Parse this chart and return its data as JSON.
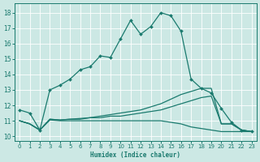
{
  "xlabel": "Humidex (Indice chaleur)",
  "bg_color": "#cce8e4",
  "grid_color": "#ffffff",
  "line_color": "#1a7a6e",
  "xlim": [
    -0.5,
    23.5
  ],
  "ylim": [
    9.7,
    18.6
  ],
  "xticks": [
    0,
    1,
    2,
    3,
    4,
    5,
    6,
    7,
    8,
    9,
    10,
    11,
    12,
    13,
    14,
    15,
    16,
    17,
    18,
    19,
    20,
    21,
    22,
    23
  ],
  "yticks": [
    10,
    11,
    12,
    13,
    14,
    15,
    16,
    17,
    18
  ],
  "series1_x": [
    0,
    1,
    2,
    3,
    4,
    5,
    6,
    7,
    8,
    9,
    10,
    11,
    12,
    13,
    14,
    15,
    16,
    17,
    18,
    19,
    20,
    21,
    22,
    23
  ],
  "series1_y": [
    11.7,
    11.5,
    10.4,
    13.0,
    13.3,
    13.7,
    14.3,
    14.5,
    15.2,
    15.1,
    16.3,
    17.5,
    16.6,
    17.1,
    18.0,
    17.8,
    16.8,
    13.7,
    13.1,
    12.8,
    11.8,
    10.9,
    10.4,
    10.3
  ],
  "series2_x": [
    0,
    1,
    2,
    3,
    4,
    5,
    6,
    7,
    8,
    9,
    10,
    11,
    12,
    13,
    14,
    15,
    16,
    17,
    18,
    19,
    20,
    21,
    22,
    23
  ],
  "series2_y": [
    11.0,
    10.8,
    10.4,
    11.1,
    11.05,
    11.1,
    11.15,
    11.2,
    11.3,
    11.4,
    11.5,
    11.6,
    11.7,
    11.9,
    12.1,
    12.4,
    12.7,
    12.9,
    13.1,
    13.1,
    10.8,
    10.8,
    10.4,
    10.3
  ],
  "series3_x": [
    0,
    1,
    2,
    3,
    4,
    5,
    6,
    7,
    8,
    9,
    10,
    11,
    12,
    13,
    14,
    15,
    16,
    17,
    18,
    19,
    20,
    21,
    22,
    23
  ],
  "series3_y": [
    11.0,
    10.8,
    10.4,
    11.1,
    11.05,
    11.1,
    11.1,
    11.2,
    11.2,
    11.3,
    11.3,
    11.4,
    11.5,
    11.6,
    11.7,
    11.9,
    12.1,
    12.3,
    12.5,
    12.6,
    10.8,
    10.8,
    10.4,
    10.3
  ],
  "series4_x": [
    0,
    1,
    2,
    3,
    4,
    5,
    6,
    7,
    8,
    9,
    10,
    11,
    12,
    13,
    14,
    15,
    16,
    17,
    18,
    19,
    20,
    21,
    22,
    23
  ],
  "series4_y": [
    11.0,
    10.8,
    10.4,
    11.05,
    11.0,
    11.0,
    11.0,
    11.0,
    11.0,
    11.0,
    11.0,
    11.0,
    11.0,
    11.0,
    11.0,
    10.9,
    10.8,
    10.6,
    10.5,
    10.4,
    10.3,
    10.3,
    10.3,
    10.3
  ]
}
